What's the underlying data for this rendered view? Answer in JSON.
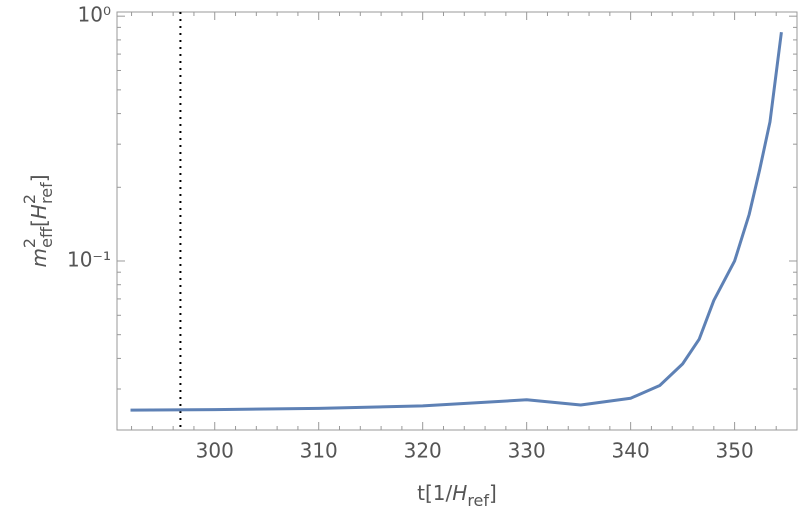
{
  "chart_data": {
    "type": "line",
    "xlabel_parts": [
      "t[1/",
      "H",
      "ref",
      "]"
    ],
    "ylabel_parts": [
      "m",
      "2",
      "eff",
      "[",
      "H",
      "2",
      "ref",
      "]"
    ],
    "x": [
      291.9,
      300,
      310,
      320,
      330,
      335.2,
      340,
      342.8,
      345,
      346.6,
      348,
      350,
      351.4,
      352.4,
      353.4,
      354.5
    ],
    "series": [
      {
        "color": "#5e81b5",
        "values": [
          0.0246,
          0.0247,
          0.025,
          0.0256,
          0.0271,
          0.0258,
          0.0275,
          0.031,
          0.038,
          0.048,
          0.069,
          0.1,
          0.155,
          0.235,
          0.37,
          0.86
        ]
      }
    ],
    "xlim": [
      290.6,
      356
    ],
    "ylim": [
      0.0204,
      1.04
    ],
    "log_y": true,
    "xticks": [
      300,
      310,
      320,
      330,
      340,
      350
    ],
    "xminorticks": [
      292,
      294,
      296,
      298,
      302,
      304,
      306,
      308,
      312,
      314,
      316,
      318,
      322,
      324,
      326,
      328,
      332,
      334,
      336,
      338,
      342,
      344,
      346,
      348,
      352,
      354
    ],
    "yticks": [
      {
        "value": 1,
        "label": "10⁰"
      },
      {
        "value": 0.1,
        "label": "10⁻¹"
      }
    ],
    "yminorticks": [
      0.03,
      0.04,
      0.05,
      0.06,
      0.07,
      0.08,
      0.09,
      0.2,
      0.3,
      0.4,
      0.5,
      0.6,
      0.7,
      0.8,
      0.9
    ],
    "vline": {
      "x": 296.7,
      "color": "#000000"
    }
  }
}
